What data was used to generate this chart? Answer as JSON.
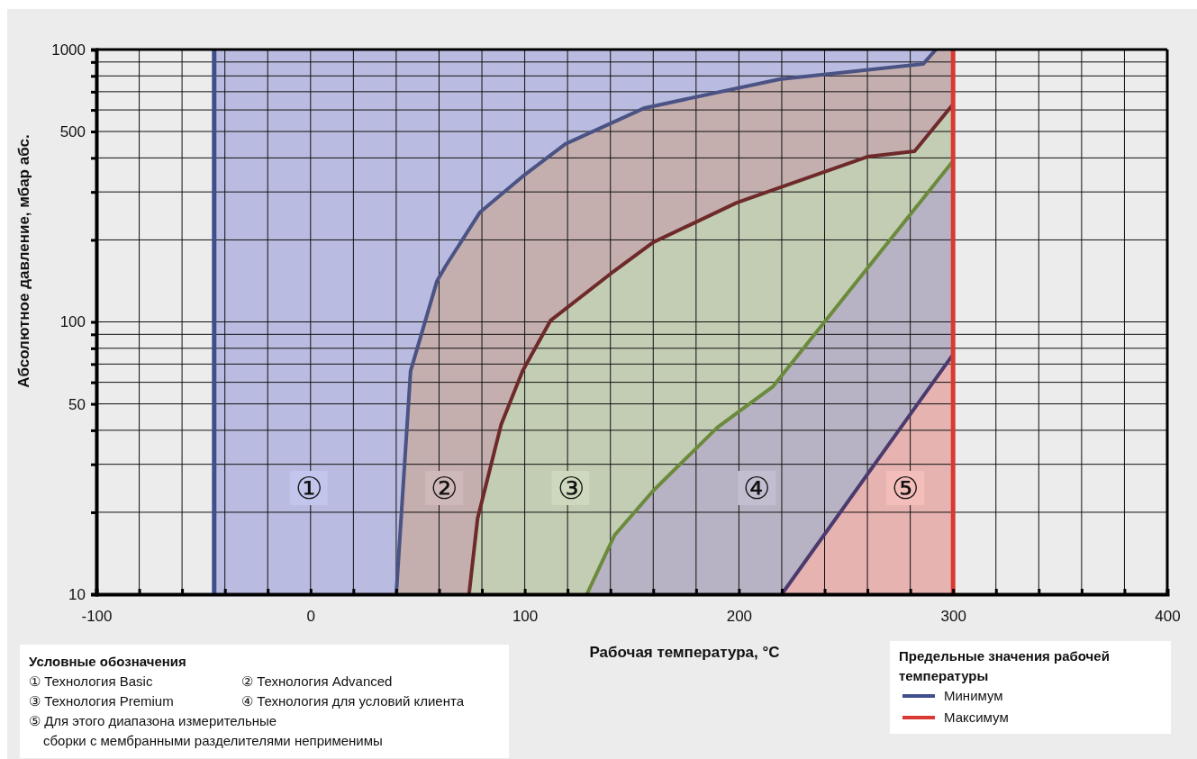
{
  "chart_data": {
    "type": "line",
    "xlabel": "Рабочая температура, °C",
    "ylabel": "Абсолютное давление, мбар абс.",
    "legend_title": "Предельные значения рабочей температуры",
    "legend": "bottom right",
    "grid": true,
    "log": "y",
    "xlim": [
      -100,
      400
    ],
    "ylim": [
      10,
      1000
    ],
    "xticks": [
      -100,
      {
        "value": -80,
        "label": null
      },
      {
        "value": -60,
        "label": null
      },
      {
        "value": -40,
        "label": null
      },
      {
        "value": -20,
        "label": null
      },
      0,
      {
        "value": 20,
        "label": null
      },
      {
        "value": 40,
        "label": null
      },
      {
        "value": 60,
        "label": null
      },
      {
        "value": 80,
        "label": null
      },
      100,
      {
        "value": 120,
        "label": null
      },
      {
        "value": 140,
        "label": null
      },
      {
        "value": 160,
        "label": null
      },
      {
        "value": 180,
        "label": null
      },
      200,
      {
        "value": 220,
        "label": null
      },
      {
        "value": 240,
        "label": null
      },
      {
        "value": 260,
        "label": null
      },
      {
        "value": 280,
        "label": null
      },
      300,
      {
        "value": 320,
        "label": null
      },
      {
        "value": 340,
        "label": null
      },
      {
        "value": 360,
        "label": null
      },
      {
        "value": 380,
        "label": null
      },
      400
    ],
    "yticks": [
      10,
      {
        "value": 20,
        "label": null
      },
      {
        "value": 30,
        "label": null
      },
      {
        "value": 40,
        "label": null
      },
      50,
      {
        "value": 60,
        "label": null
      },
      {
        "value": 70,
        "label": null
      },
      {
        "value": 80,
        "label": null
      },
      {
        "value": 90,
        "label": null
      },
      100,
      {
        "value": 200,
        "label": null
      },
      {
        "value": 300,
        "label": null
      },
      {
        "value": 400,
        "label": null
      },
      500,
      {
        "value": 600,
        "label": null
      },
      {
        "value": 700,
        "label": null
      },
      {
        "value": 800,
        "label": null
      },
      {
        "value": 900,
        "label": null
      },
      1000
    ],
    "bands": [
      {
        "axis": "x",
        "from": -45,
        "to": 300,
        "color": "#b9bce0"
      }
    ],
    "series": [
      {
        "color": "#4a5384",
        "x": [
          40,
          46.7,
          59,
          63,
          79,
          99,
          119,
          156,
          219,
          286,
          292
        ],
        "values": [
          10,
          66,
          141,
          160,
          252,
          342,
          450,
          610,
          778,
          885,
          1000
        ]
      },
      {
        "color": "#6e2a2a",
        "x": [
          74,
          78,
          89,
          99,
          112,
          140,
          160,
          199,
          260,
          282,
          300
        ],
        "values": [
          10,
          19,
          42,
          66,
          101,
          150,
          196,
          274,
          404,
          423,
          630
        ]
      },
      {
        "color": "#6b8a3c",
        "x": [
          129,
          142,
          160,
          190,
          216,
          240,
          300
        ],
        "values": [
          10,
          16.5,
          24,
          41,
          58,
          100,
          390
        ]
      },
      {
        "color": "#4b3a6e",
        "x": [
          220,
          300
        ],
        "values": [
          10,
          76
        ]
      },
      {
        "name": "Минимум",
        "color": "#3f4f8c",
        "x": [
          -45,
          -45
        ],
        "values": [
          10,
          1000
        ]
      },
      {
        "name": "Максимум",
        "color": "#d83a32",
        "x": [
          300,
          300
        ],
        "values": [
          10,
          1000
        ]
      }
    ],
    "annotations": [
      "①",
      "②",
      "③",
      "④",
      "⑤",
      "Условные обозначения",
      "① Технология Basic",
      "② Технология Advanced",
      "③ Технология Premium",
      "④ Технология для условий клиента",
      "⑤ Для этого диапазона измерительные сборки с мембранными разделителями неприменимы"
    ]
  }
}
